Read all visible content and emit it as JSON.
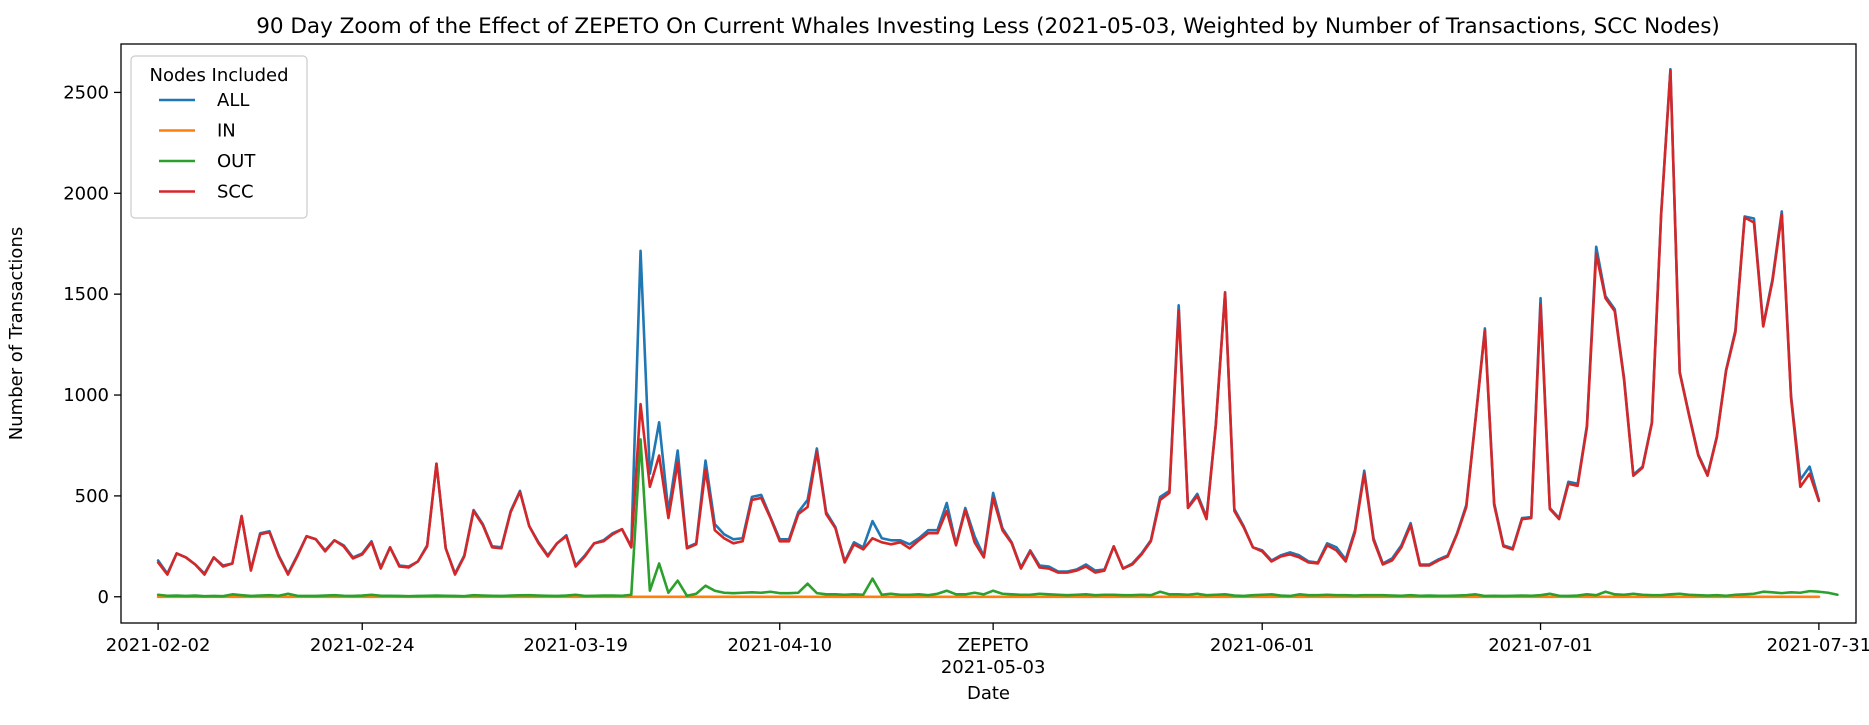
{
  "chart_data": {
    "type": "line",
    "title": "90 Day Zoom of the Effect of ZEPETO On Current Whales Investing Less (2021-05-03, Weighted by Number of Transactions, SCC Nodes)",
    "xlabel": "Date",
    "ylabel": "Number of Transactions",
    "xlim": [
      "2021-01-29",
      "2021-08-04"
    ],
    "ylim": [
      -130,
      2740
    ],
    "x_ticks": [
      {
        "date": "2021-02-02",
        "label": "2021-02-02"
      },
      {
        "date": "2021-02-24",
        "label": "2021-02-24"
      },
      {
        "date": "2021-03-19",
        "label": "2021-03-19"
      },
      {
        "date": "2021-04-10",
        "label": "2021-04-10"
      },
      {
        "date": "2021-05-03",
        "label": "2021-05-03"
      },
      {
        "date": "2021-06-01",
        "label": "2021-06-01"
      },
      {
        "date": "2021-07-01",
        "label": "2021-07-01"
      },
      {
        "date": "2021-07-31",
        "label": "2021-07-31"
      }
    ],
    "y_ticks": [
      0,
      500,
      1000,
      1500,
      2000,
      2500
    ],
    "annotation": {
      "date": "2021-05-03",
      "label": "ZEPETO"
    },
    "legend": {
      "title": "Nodes Included",
      "placement": "upper-left"
    },
    "x_start": "2021-02-02",
    "x_step_days": 1,
    "series": [
      {
        "name": "ALL",
        "color": "#1f77b4",
        "values": [
          180,
          115,
          215,
          195,
          160,
          115,
          195,
          155,
          165,
          400,
          135,
          315,
          325,
          205,
          115,
          205,
          300,
          285,
          230,
          280,
          255,
          195,
          215,
          275,
          145,
          245,
          155,
          150,
          175,
          255,
          660,
          240,
          115,
          205,
          430,
          360,
          250,
          245,
          425,
          525,
          350,
          270,
          205,
          265,
          305,
          155,
          205,
          265,
          280,
          315,
          335,
          250,
          1715,
          610,
          865,
          420,
          725,
          245,
          265,
          675,
          360,
          310,
          285,
          290,
          495,
          505,
          395,
          285,
          285,
          420,
          480,
          735,
          420,
          345,
          175,
          270,
          245,
          375,
          290,
          280,
          280,
          260,
          290,
          330,
          330,
          465,
          260,
          440,
          300,
          200,
          515,
          340,
          270,
          145,
          230,
          155,
          150,
          125,
          125,
          135,
          160,
          130,
          135,
          250,
          140,
          165,
          215,
          280,
          495,
          525,
          1445,
          445,
          510,
          395,
          855,
          1510,
          435,
          350,
          245,
          230,
          180,
          205,
          220,
          205,
          175,
          170,
          265,
          245,
          185,
          330,
          625,
          290,
          165,
          190,
          255,
          365,
          160,
          160,
          185,
          205,
          315,
          455,
          885,
          1330,
          465,
          255,
          240,
          390,
          395,
          1480,
          440,
          390,
          570,
          560,
          850,
          1735,
          1490,
          1425,
          1085,
          605,
          645,
          865,
          1900,
          2615,
          1115,
          905,
          705,
          605,
          795,
          1125,
          1320,
          1885,
          1875,
          1345,
          1575,
          1910,
          995,
          580,
          645,
          480
        ]
      },
      {
        "name": "IN",
        "color": "#ff7f0e",
        "values": [
          0,
          0,
          0,
          0,
          0,
          0,
          0,
          0,
          0,
          0,
          0,
          0,
          0,
          0,
          0,
          0,
          0,
          0,
          0,
          0,
          0,
          0,
          0,
          0,
          0,
          0,
          0,
          0,
          0,
          0,
          0,
          0,
          0,
          0,
          0,
          0,
          0,
          0,
          0,
          0,
          0,
          0,
          0,
          0,
          0,
          0,
          0,
          0,
          0,
          0,
          0,
          0,
          0,
          0,
          0,
          0,
          0,
          0,
          0,
          0,
          0,
          0,
          0,
          0,
          0,
          0,
          0,
          0,
          0,
          0,
          0,
          0,
          0,
          0,
          0,
          0,
          0,
          0,
          0,
          0,
          0,
          0,
          0,
          0,
          0,
          0,
          0,
          0,
          0,
          0,
          0,
          0,
          0,
          0,
          0,
          0,
          0,
          0,
          0,
          0,
          0,
          0,
          0,
          0,
          0,
          0,
          0,
          0,
          0,
          0,
          0,
          0,
          0,
          0,
          0,
          0,
          0,
          0,
          0,
          0,
          0,
          0,
          0,
          0,
          0,
          0,
          0,
          0,
          0,
          0,
          0,
          0,
          0,
          0,
          0,
          0,
          0,
          0,
          0,
          0,
          0,
          0,
          0,
          0,
          0,
          0,
          0,
          0,
          0,
          0,
          0,
          0,
          0,
          0,
          0,
          0,
          0,
          0,
          0,
          0,
          0,
          0,
          0,
          0,
          0,
          0,
          0,
          0,
          0,
          0,
          0,
          0,
          0,
          0,
          0,
          0,
          0,
          0,
          0,
          0
        ]
      },
      {
        "name": "OUT",
        "color": "#2ca02c",
        "values": [
          10,
          5,
          6,
          4,
          6,
          3,
          4,
          3,
          12,
          8,
          4,
          6,
          8,
          5,
          15,
          5,
          4,
          4,
          6,
          8,
          5,
          4,
          6,
          10,
          5,
          5,
          4,
          3,
          4,
          5,
          6,
          5,
          4,
          3,
          8,
          6,
          5,
          4,
          6,
          7,
          8,
          6,
          5,
          4,
          6,
          10,
          4,
          5,
          6,
          6,
          5,
          10,
          780,
          30,
          165,
          20,
          80,
          5,
          15,
          55,
          30,
          20,
          18,
          20,
          22,
          20,
          25,
          18,
          18,
          20,
          65,
          18,
          12,
          12,
          10,
          12,
          10,
          90,
          10,
          15,
          10,
          10,
          12,
          8,
          15,
          30,
          12,
          12,
          20,
          12,
          30,
          15,
          12,
          10,
          10,
          15,
          12,
          10,
          8,
          10,
          12,
          8,
          10,
          10,
          8,
          8,
          10,
          8,
          25,
          12,
          12,
          10,
          15,
          8,
          10,
          12,
          6,
          4,
          8,
          10,
          12,
          6,
          4,
          12,
          8,
          8,
          10,
          8,
          8,
          6,
          8,
          8,
          8,
          6,
          5,
          8,
          5,
          6,
          5,
          5,
          6,
          8,
          12,
          4,
          5,
          4,
          5,
          6,
          5,
          8,
          15,
          5,
          4,
          6,
          12,
          8,
          25,
          12,
          10,
          15,
          10,
          8,
          8,
          12,
          15,
          10,
          8,
          6,
          8,
          5,
          10,
          12,
          15,
          25,
          22,
          18,
          22,
          20,
          28,
          25,
          20,
          10
        ]
      },
      {
        "name": "SCC",
        "color": "#d62728",
        "values": [
          170,
          110,
          215,
          195,
          160,
          110,
          195,
          150,
          165,
          400,
          130,
          310,
          320,
          200,
          110,
          200,
          300,
          285,
          225,
          280,
          250,
          190,
          210,
          270,
          140,
          245,
          150,
          145,
          175,
          250,
          660,
          240,
          110,
          200,
          425,
          355,
          245,
          240,
          420,
          520,
          350,
          265,
          200,
          265,
          300,
          150,
          200,
          265,
          275,
          310,
          335,
          245,
          955,
          545,
          700,
          390,
          665,
          240,
          260,
          630,
          330,
          290,
          265,
          275,
          480,
          490,
          390,
          275,
          275,
          410,
          445,
          720,
          410,
          340,
          170,
          260,
          235,
          290,
          270,
          260,
          270,
          240,
          280,
          315,
          315,
          425,
          255,
          430,
          270,
          195,
          490,
          330,
          265,
          140,
          225,
          145,
          140,
          120,
          120,
          130,
          150,
          120,
          130,
          250,
          140,
          160,
          210,
          275,
          480,
          515,
          1420,
          440,
          500,
          385,
          850,
          1505,
          425,
          345,
          245,
          225,
          175,
          200,
          210,
          195,
          170,
          165,
          255,
          230,
          175,
          320,
          610,
          280,
          160,
          180,
          245,
          355,
          155,
          155,
          180,
          200,
          310,
          445,
          880,
          1320,
          455,
          250,
          235,
          385,
          390,
          1450,
          435,
          385,
          560,
          550,
          840,
          1700,
          1480,
          1415,
          1075,
          600,
          640,
          860,
          1895,
          2610,
          1110,
          900,
          700,
          600,
          790,
          1120,
          1310,
          1880,
          1855,
          1340,
          1565,
          1895,
          985,
          545,
          610,
          475
        ]
      }
    ]
  }
}
